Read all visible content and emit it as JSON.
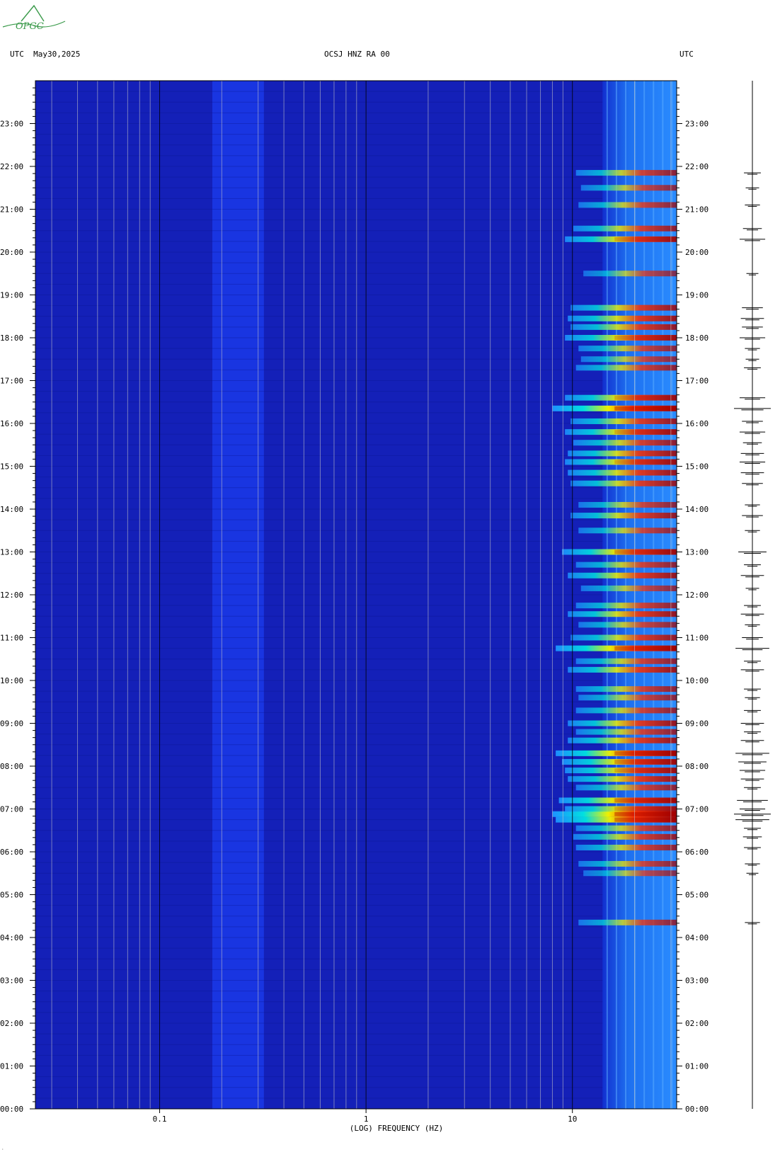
{
  "header": {
    "left": "UTC  May30,2025",
    "center": "OCSJ HNZ RA 00",
    "right": "UTC"
  },
  "logo": {
    "text": "OPGC",
    "color": "#3a9a4a"
  },
  "chart_data": {
    "type": "heatmap",
    "xlabel": "(LOG) FREQUENCY (HZ)",
    "x_scale": "log",
    "xlim": [
      0.025,
      32
    ],
    "x_ticks": [
      {
        "value": 0.1,
        "label": "0.1"
      },
      {
        "value": 1,
        "label": "1"
      },
      {
        "value": 10,
        "label": "10"
      }
    ],
    "ylim_hours": [
      0,
      24
    ],
    "y_ticks": [
      {
        "value": 0,
        "label": "00:00"
      },
      {
        "value": 1,
        "label": "01:00"
      },
      {
        "value": 2,
        "label": "02:00"
      },
      {
        "value": 3,
        "label": "03:00"
      },
      {
        "value": 4,
        "label": "04:00"
      },
      {
        "value": 5,
        "label": "05:00"
      },
      {
        "value": 6,
        "label": "06:00"
      },
      {
        "value": 7,
        "label": "07:00"
      },
      {
        "value": 8,
        "label": "08:00"
      },
      {
        "value": 9,
        "label": "09:00"
      },
      {
        "value": 10,
        "label": "10:00"
      },
      {
        "value": 11,
        "label": "11:00"
      },
      {
        "value": 12,
        "label": "12:00"
      },
      {
        "value": 13,
        "label": "13:00"
      },
      {
        "value": 14,
        "label": "14:00"
      },
      {
        "value": 15,
        "label": "15:00"
      },
      {
        "value": 16,
        "label": "16:00"
      },
      {
        "value": 17,
        "label": "17:00"
      },
      {
        "value": 18,
        "label": "18:00"
      },
      {
        "value": 19,
        "label": "19:00"
      },
      {
        "value": 20,
        "label": "20:00"
      },
      {
        "value": 21,
        "label": "21:00"
      },
      {
        "value": 22,
        "label": "22:00"
      },
      {
        "value": 23,
        "label": "23:00"
      }
    ],
    "grid": true,
    "colormap": [
      "#0a1aa0",
      "#1230d0",
      "#1e90ff",
      "#00e0e0",
      "#f0f000",
      "#ff3000",
      "#a00000"
    ],
    "background_level_color": "#1420b8",
    "low_freq_band": {
      "from": 0.18,
      "to": 0.32,
      "color": "#1a3ae8"
    },
    "high_freq_band": {
      "from": 14,
      "to": 32
    },
    "events": [
      {
        "hour": 4.35,
        "intensity": 0.55
      },
      {
        "hour": 5.5,
        "intensity": 0.45
      },
      {
        "hour": 5.72,
        "intensity": 0.55
      },
      {
        "hour": 6.1,
        "intensity": 0.6
      },
      {
        "hour": 6.35,
        "intensity": 0.65
      },
      {
        "hour": 6.55,
        "intensity": 0.6
      },
      {
        "hour": 6.75,
        "intensity": 0.95
      },
      {
        "hour": 6.88,
        "intensity": 1.0
      },
      {
        "hour": 7.0,
        "intensity": 0.8
      },
      {
        "hour": 7.2,
        "intensity": 0.9
      },
      {
        "hour": 7.5,
        "intensity": 0.6
      },
      {
        "hour": 7.7,
        "intensity": 0.75
      },
      {
        "hour": 7.9,
        "intensity": 0.8
      },
      {
        "hour": 8.1,
        "intensity": 0.85
      },
      {
        "hour": 8.3,
        "intensity": 0.95
      },
      {
        "hour": 8.6,
        "intensity": 0.75
      },
      {
        "hour": 8.8,
        "intensity": 0.6
      },
      {
        "hour": 9.0,
        "intensity": 0.75
      },
      {
        "hour": 9.3,
        "intensity": 0.6
      },
      {
        "hour": 9.6,
        "intensity": 0.55
      },
      {
        "hour": 9.8,
        "intensity": 0.6
      },
      {
        "hour": 10.25,
        "intensity": 0.75
      },
      {
        "hour": 10.45,
        "intensity": 0.6
      },
      {
        "hour": 10.75,
        "intensity": 0.95
      },
      {
        "hour": 11.0,
        "intensity": 0.7
      },
      {
        "hour": 11.3,
        "intensity": 0.55
      },
      {
        "hour": 11.55,
        "intensity": 0.75
      },
      {
        "hour": 11.75,
        "intensity": 0.6
      },
      {
        "hour": 12.15,
        "intensity": 0.5
      },
      {
        "hour": 12.45,
        "intensity": 0.75
      },
      {
        "hour": 12.7,
        "intensity": 0.6
      },
      {
        "hour": 13.0,
        "intensity": 0.85
      },
      {
        "hour": 13.5,
        "intensity": 0.55
      },
      {
        "hour": 13.85,
        "intensity": 0.7
      },
      {
        "hour": 14.1,
        "intensity": 0.55
      },
      {
        "hour": 14.6,
        "intensity": 0.7
      },
      {
        "hour": 14.85,
        "intensity": 0.75
      },
      {
        "hour": 15.1,
        "intensity": 0.8
      },
      {
        "hour": 15.3,
        "intensity": 0.75
      },
      {
        "hour": 15.55,
        "intensity": 0.65
      },
      {
        "hour": 15.8,
        "intensity": 0.8
      },
      {
        "hour": 16.05,
        "intensity": 0.7
      },
      {
        "hour": 16.35,
        "intensity": 1.0
      },
      {
        "hour": 16.6,
        "intensity": 0.8
      },
      {
        "hour": 17.3,
        "intensity": 0.6
      },
      {
        "hour": 17.5,
        "intensity": 0.5
      },
      {
        "hour": 17.75,
        "intensity": 0.55
      },
      {
        "hour": 18.0,
        "intensity": 0.8
      },
      {
        "hour": 18.25,
        "intensity": 0.7
      },
      {
        "hour": 18.45,
        "intensity": 0.75
      },
      {
        "hour": 18.7,
        "intensity": 0.7
      },
      {
        "hour": 19.5,
        "intensity": 0.45
      },
      {
        "hour": 20.3,
        "intensity": 0.8
      },
      {
        "hour": 20.55,
        "intensity": 0.65
      },
      {
        "hour": 21.1,
        "intensity": 0.55
      },
      {
        "hour": 21.5,
        "intensity": 0.5
      },
      {
        "hour": 21.85,
        "intensity": 0.6
      }
    ]
  }
}
